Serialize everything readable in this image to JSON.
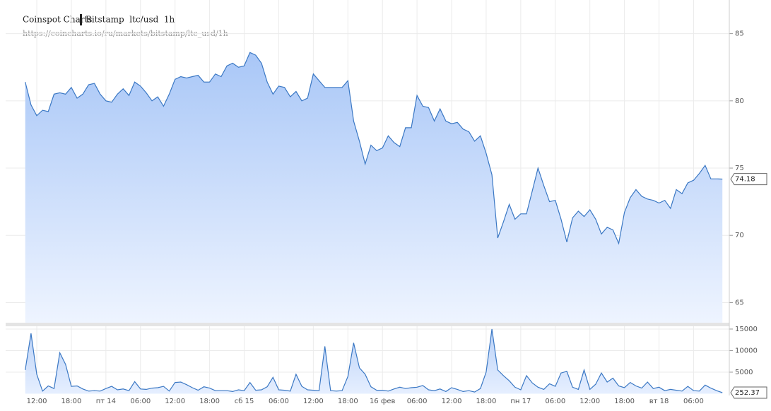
{
  "header": {
    "brand": "Coinspot Charts",
    "market": "Bitstamp  ltc/usd  1h",
    "url": "https://coincharts.io/ru/markets/bitstamp/ltc_usd/1h"
  },
  "chart_data": [
    {
      "type": "area",
      "color": "#3b78c4",
      "x": [
        10,
        11,
        12,
        13,
        14,
        15,
        16,
        17,
        18,
        19,
        20,
        21,
        22,
        23,
        24,
        25,
        26,
        27,
        28,
        29,
        30,
        31,
        32,
        33,
        34,
        35,
        36,
        37,
        38,
        39,
        40,
        41,
        42,
        43,
        44,
        45,
        46,
        47,
        48,
        49,
        50,
        51,
        52,
        53,
        54,
        55,
        56,
        57,
        58,
        59,
        60,
        61,
        62,
        63,
        64,
        65,
        66,
        67,
        68,
        69,
        70,
        71,
        72,
        73,
        74,
        75,
        76,
        77,
        78,
        79,
        80,
        81,
        82,
        83,
        84,
        85,
        86,
        87,
        88,
        89,
        90,
        91,
        92,
        93,
        94,
        95,
        96,
        97,
        98,
        99,
        100,
        101,
        102,
        103,
        104,
        105,
        106,
        107,
        108,
        109,
        110,
        111,
        112,
        113,
        114,
        115,
        116,
        117,
        118,
        119,
        120,
        121,
        122,
        123,
        124,
        125,
        126,
        127,
        128,
        129,
        130,
        131
      ],
      "values": [
        81.4,
        79.7,
        78.9,
        79.3,
        79.2,
        80.5,
        80.6,
        80.5,
        81.0,
        80.2,
        80.5,
        81.2,
        81.3,
        80.5,
        80.0,
        79.9,
        80.5,
        80.9,
        80.4,
        81.4,
        81.1,
        80.6,
        80.0,
        80.3,
        79.6,
        80.5,
        81.6,
        81.8,
        81.7,
        81.8,
        81.9,
        81.4,
        81.4,
        82.0,
        81.8,
        82.6,
        82.8,
        82.5,
        82.6,
        83.6,
        83.4,
        82.8,
        81.4,
        80.5,
        81.1,
        81.0,
        80.3,
        80.7,
        80.0,
        80.2,
        82.0,
        81.5,
        81.0,
        81.0,
        81.0,
        81.0,
        81.5,
        78.5,
        77.0,
        75.3,
        76.7,
        76.3,
        76.5,
        77.4,
        76.9,
        76.6,
        78.0,
        78.0,
        80.4,
        79.6,
        79.5,
        78.5,
        79.4,
        78.5,
        78.3,
        78.4,
        77.9,
        77.7,
        77.0,
        77.4,
        76.1,
        74.5,
        69.8,
        71.0,
        72.3,
        71.2,
        71.6,
        71.6,
        73.3,
        75.0,
        73.7,
        72.5,
        72.6,
        71.2,
        69.5,
        71.3,
        71.8,
        71.4,
        71.9,
        71.2,
        70.1,
        70.6,
        70.4,
        69.4,
        71.7,
        72.8,
        73.4,
        72.9,
        72.7,
        72.6,
        72.4,
        72.6,
        72.0,
        73.4,
        73.1,
        73.9,
        74.1,
        74.6,
        75.2,
        74.2,
        74.2,
        74.18
      ],
      "ylim": [
        63.5,
        87.5
      ],
      "yticks": [
        65,
        70,
        75,
        80,
        85
      ]
    },
    {
      "type": "area",
      "color": "#3b78c4",
      "x": [
        10,
        11,
        12,
        13,
        14,
        15,
        16,
        17,
        18,
        19,
        20,
        21,
        22,
        23,
        24,
        25,
        26,
        27,
        28,
        29,
        30,
        31,
        32,
        33,
        34,
        35,
        36,
        37,
        38,
        39,
        40,
        41,
        42,
        43,
        44,
        45,
        46,
        47,
        48,
        49,
        50,
        51,
        52,
        53,
        54,
        55,
        56,
        57,
        58,
        59,
        60,
        61,
        62,
        63,
        64,
        65,
        66,
        67,
        68,
        69,
        70,
        71,
        72,
        73,
        74,
        75,
        76,
        77,
        78,
        79,
        80,
        81,
        82,
        83,
        84,
        85,
        86,
        87,
        88,
        89,
        90,
        91,
        92,
        93,
        94,
        95,
        96,
        97,
        98,
        99,
        100,
        101,
        102,
        103,
        104,
        105,
        106,
        107,
        108,
        109,
        110,
        111,
        112,
        113,
        114,
        115,
        116,
        117,
        118,
        119,
        120,
        121,
        122,
        123,
        124,
        125,
        126,
        127,
        128,
        129,
        130,
        131
      ],
      "values": [
        5500,
        14000,
        4500,
        600,
        1800,
        1200,
        9500,
        6800,
        1700,
        1800,
        1100,
        600,
        700,
        600,
        1200,
        1700,
        900,
        1100,
        700,
        2800,
        1100,
        1000,
        1300,
        1400,
        1700,
        600,
        2600,
        2700,
        2100,
        1400,
        800,
        1600,
        1300,
        700,
        700,
        700,
        500,
        900,
        700,
        2600,
        800,
        900,
        1600,
        3800,
        900,
        800,
        600,
        4500,
        1700,
        900,
        800,
        700,
        11000,
        700,
        600,
        700,
        4000,
        11800,
        6000,
        4500,
        1600,
        800,
        800,
        600,
        1100,
        1500,
        1200,
        1400,
        1500,
        1900,
        900,
        700,
        1100,
        500,
        1400,
        1000,
        500,
        700,
        400,
        1200,
        5000,
        15000,
        5500,
        4200,
        3000,
        1500,
        900,
        4200,
        2500,
        1500,
        1000,
        2300,
        1700,
        4800,
        5200,
        1500,
        1000,
        5500,
        1000,
        2200,
        4800,
        2700,
        3600,
        1800,
        1400,
        2600,
        1800,
        1300,
        2700,
        1200,
        1500,
        700,
        1000,
        800,
        600,
        1700,
        700,
        600,
        2000,
        1300,
        700,
        252.37
      ],
      "ylim": [
        0,
        15650
      ],
      "yticks": [
        5000,
        10000,
        15000
      ],
      "xlim": [
        6.6,
        132.2
      ],
      "xticks": [
        {
          "value": 12,
          "label": "12:00"
        },
        {
          "value": 18,
          "label": "18:00"
        },
        {
          "value": 24,
          "label": "пт 14"
        },
        {
          "value": 30,
          "label": "06:00"
        },
        {
          "value": 36,
          "label": "12:00"
        },
        {
          "value": 42,
          "label": "18:00"
        },
        {
          "value": 48,
          "label": "сб 15"
        },
        {
          "value": 54,
          "label": "06:00"
        },
        {
          "value": 60,
          "label": "12:00"
        },
        {
          "value": 66,
          "label": "18:00"
        },
        {
          "value": 72,
          "label": "16 фев"
        },
        {
          "value": 78,
          "label": "06:00"
        },
        {
          "value": 84,
          "label": "12:00"
        },
        {
          "value": 90,
          "label": "18:00"
        },
        {
          "value": 96,
          "label": "пн 17"
        },
        {
          "value": 102,
          "label": "06:00"
        },
        {
          "value": 108,
          "label": "12:00"
        },
        {
          "value": 114,
          "label": "18:00"
        },
        {
          "value": 120,
          "label": "вт 18"
        },
        {
          "value": 126,
          "label": "06:00"
        }
      ]
    }
  ]
}
